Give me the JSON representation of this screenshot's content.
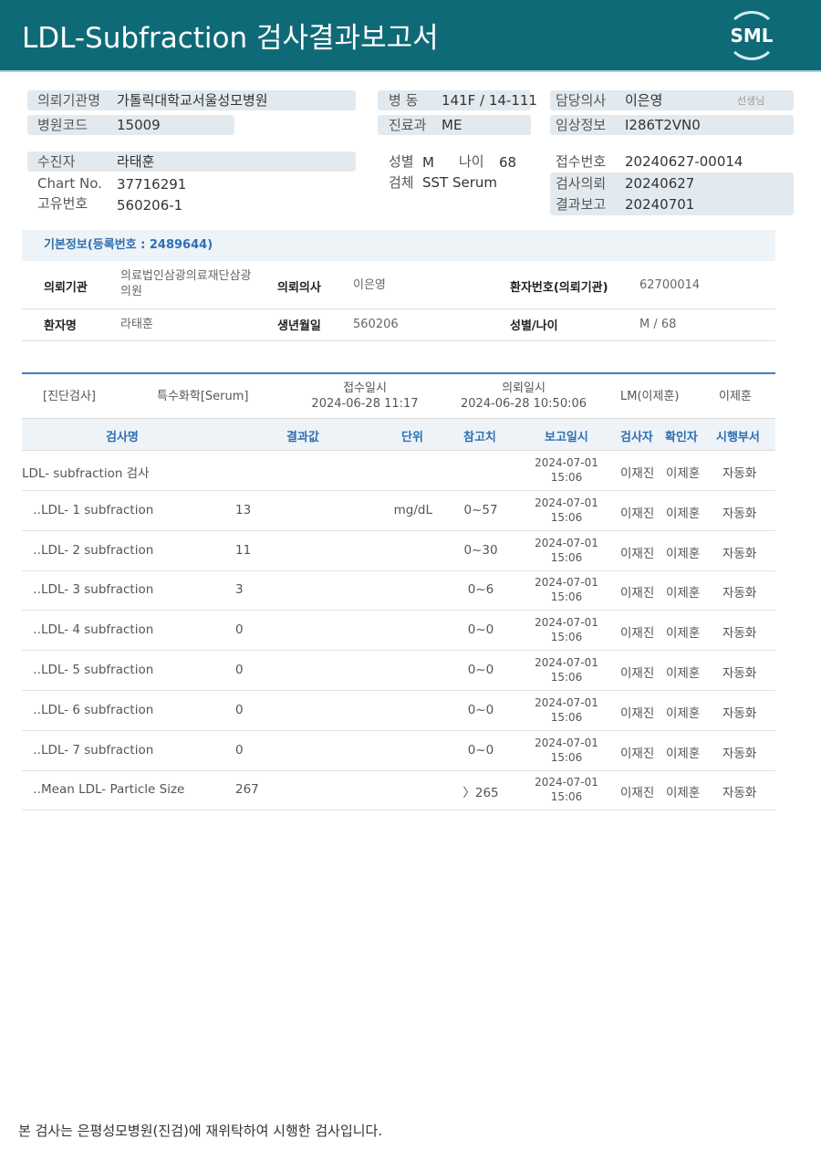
{
  "header": {
    "title": "LDL-Subfraction 검사결과보고서",
    "logo": "SML"
  },
  "info": {
    "institution_label": "의뢰기관명",
    "institution": "가톨릭대학교서울성모병원",
    "hospital_code_label": "병원코드",
    "hospital_code": "15009",
    "ward_label": "병 동",
    "ward": "141F / 14-111",
    "dept_label": "진료과",
    "dept": "ME",
    "doctor_label": "담당의사",
    "doctor": "이은영",
    "doctor_suffix": "선생님",
    "clinical_label": "임상정보",
    "clinical": "I286T2VN0",
    "patient_label": "수진자",
    "patient": "라태훈",
    "chart_label": "Chart No.",
    "chart": "37716291",
    "id_label": "고유번호",
    "id": "560206-1",
    "sex_label": "성별",
    "sex": "M",
    "age_label": "나이",
    "age": "68",
    "specimen_label": "검체",
    "specimen": "SST Serum",
    "receipt_label": "접수번호",
    "receipt": "20240627-00014",
    "request_label": "검사의뢰",
    "request": "20240627",
    "report_label": "결과보고",
    "report": "20240701"
  },
  "basic": {
    "title": "기본정보(등록번호 : 2489644)",
    "institution_label": "의뢰기관",
    "institution": "의료법인삼광의료재단삼광의원",
    "doctor_label": "의뢰의사",
    "doctor": "이은영",
    "patno_label": "환자번호(의뢰기관)",
    "patno": "62700014",
    "name_label": "환자명",
    "name": "라태훈",
    "birth_label": "생년월일",
    "birth": "560206",
    "sexage_label": "성별/나이",
    "sexage": "M / 68"
  },
  "order": {
    "category": "[진단검사]",
    "section": "특수화학[Serum]",
    "received_label": "접수일시",
    "received": "2024-06-28 11:17",
    "requested_label": "의뢰일시",
    "requested": "2024-06-28 10:50:06",
    "lm": "LM(이제훈)",
    "person": "이제훈"
  },
  "table": {
    "headers": [
      "검사명",
      "결과값",
      "단위",
      "참고치",
      "보고일시",
      "검사자",
      "확인자",
      "시행부서"
    ],
    "rows": [
      {
        "name": "LDL- subfraction 검사",
        "result": "",
        "unit": "",
        "ref": "",
        "date": "2024-07-01",
        "time": "15:06",
        "tester": "이재진",
        "confirmer": "이제훈",
        "dept": "자동화"
      },
      {
        "name": "‥LDL- 1 subfraction",
        "result": "13",
        "unit": "mg/dL",
        "ref": "0~57",
        "date": "2024-07-01",
        "time": "15:06",
        "tester": "이재진",
        "confirmer": "이제훈",
        "dept": "자동화"
      },
      {
        "name": "‥LDL- 2 subfraction",
        "result": "11",
        "unit": "",
        "ref": "0~30",
        "date": "2024-07-01",
        "time": "15:06",
        "tester": "이재진",
        "confirmer": "이제훈",
        "dept": "자동화"
      },
      {
        "name": "‥LDL- 3 subfraction",
        "result": "3",
        "unit": "",
        "ref": "0~6",
        "date": "2024-07-01",
        "time": "15:06",
        "tester": "이재진",
        "confirmer": "이제훈",
        "dept": "자동화"
      },
      {
        "name": "‥LDL- 4 subfraction",
        "result": "0",
        "unit": "",
        "ref": "0~0",
        "date": "2024-07-01",
        "time": "15:06",
        "tester": "이재진",
        "confirmer": "이제훈",
        "dept": "자동화"
      },
      {
        "name": "‥LDL- 5 subfraction",
        "result": "0",
        "unit": "",
        "ref": "0~0",
        "date": "2024-07-01",
        "time": "15:06",
        "tester": "이재진",
        "confirmer": "이제훈",
        "dept": "자동화"
      },
      {
        "name": "‥LDL- 6 subfraction",
        "result": "0",
        "unit": "",
        "ref": "0~0",
        "date": "2024-07-01",
        "time": "15:06",
        "tester": "이재진",
        "confirmer": "이제훈",
        "dept": "자동화"
      },
      {
        "name": "‥LDL- 7 subfraction",
        "result": "0",
        "unit": "",
        "ref": "0~0",
        "date": "2024-07-01",
        "time": "15:06",
        "tester": "이재진",
        "confirmer": "이제훈",
        "dept": "자동화"
      },
      {
        "name": "‥Mean LDL- Particle Size",
        "result": "267",
        "unit": "",
        "ref": "〉265",
        "date": "2024-07-01",
        "time": "15:06",
        "tester": "이재진",
        "confirmer": "이제훈",
        "dept": "자동화"
      }
    ]
  },
  "footer": "본 검사는 은평성모병원(진검)에 재위탁하여 시행한 검사입니다."
}
